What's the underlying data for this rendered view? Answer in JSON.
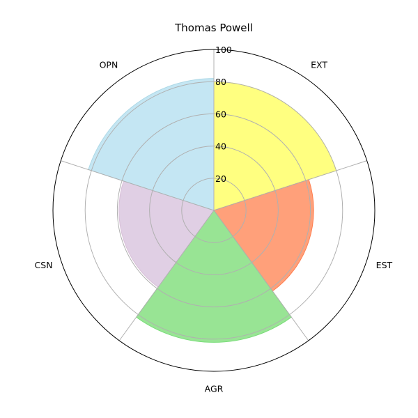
{
  "chart_data": {
    "type": "polar-bar",
    "title": "Thomas Powell",
    "categories": [
      "EXT",
      "EST",
      "AGR",
      "CSN",
      "OPN"
    ],
    "values": [
      80,
      62,
      82,
      59,
      82
    ],
    "colors": [
      "#ffff80",
      "#ffa07a",
      "#98e494",
      "#e0cfe4",
      "#c4e6f3"
    ],
    "edge_colors": [
      "#ffff66",
      "#ff7f50",
      "#77dd77",
      "#d8bfd8",
      "#add8e6"
    ],
    "rlim": [
      0,
      100
    ],
    "rticks": [
      20,
      40,
      60,
      80,
      100
    ],
    "rtick_labels": [
      "20",
      "40",
      "60",
      "80",
      "100"
    ],
    "grid": true
  }
}
